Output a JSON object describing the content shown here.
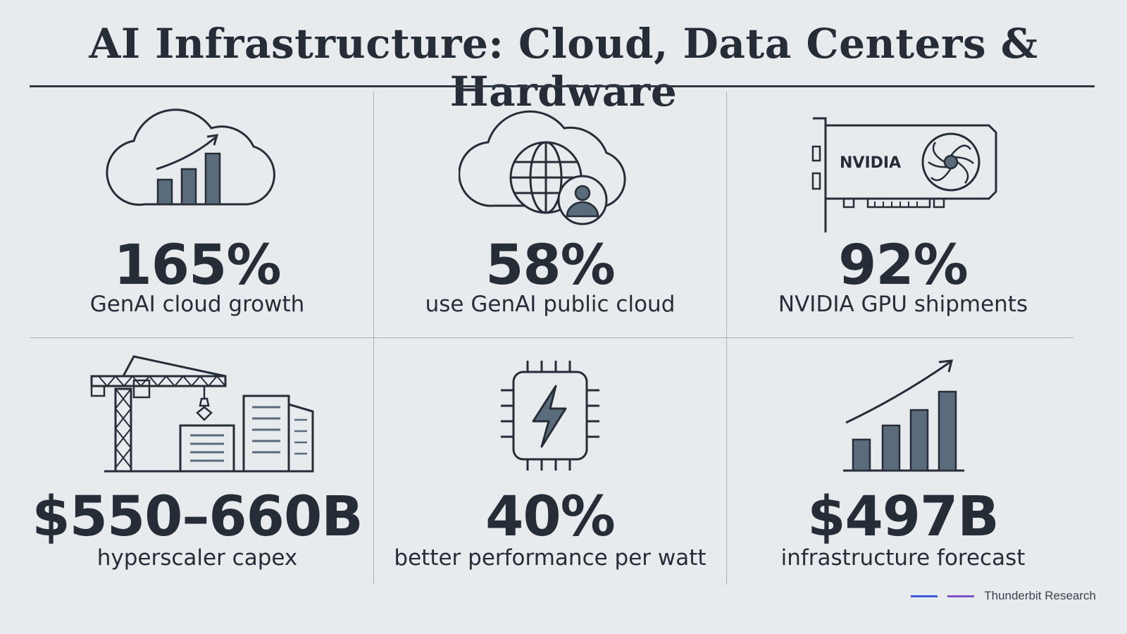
{
  "title": "AI Infrastructure: Cloud, Data Centers & Hardware",
  "stats": [
    {
      "value": "165%",
      "label": "GenAI cloud growth",
      "icon": "cloud-growth-chart-icon"
    },
    {
      "value": "58%",
      "label": "use GenAI public cloud",
      "icon": "cloud-globe-user-icon"
    },
    {
      "value": "92%",
      "label": "NVIDIA GPU shipments",
      "icon": "gpu-card-icon",
      "icon_text": "NVIDIA"
    },
    {
      "value": "$550–660B",
      "label": "hyperscaler capex",
      "icon": "crane-buildings-icon"
    },
    {
      "value": "40%",
      "label": "better performance per watt",
      "icon": "chip-lightning-icon"
    },
    {
      "value": "$497B",
      "label": "infrastructure forecast",
      "icon": "bar-chart-growth-icon"
    }
  ],
  "footer": {
    "source": "Thunderbit Research",
    "accent_colors": [
      "#3b5bdb",
      "#7b52c7"
    ]
  },
  "colors": {
    "background": "#e8ebee",
    "ink": "#262d36",
    "icon_fill": "#5a6b7b"
  }
}
